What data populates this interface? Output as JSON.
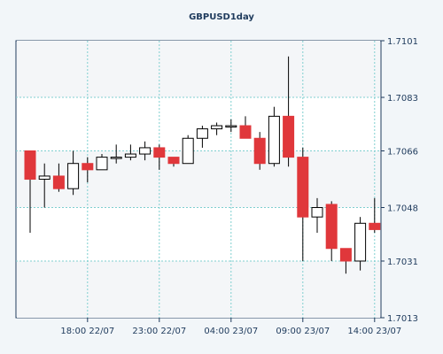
{
  "chart_data": {
    "type": "candlestick",
    "title": "GBPUSD1day",
    "y_ticks": [
      "1.7101",
      "1.7083",
      "1.7066",
      "1.7048",
      "1.7031",
      "1.7013"
    ],
    "ylim": [
      1.7013,
      1.7101
    ],
    "x_ticks": [
      {
        "label": "18:00 22/07",
        "index": 4
      },
      {
        "label": "23:00 22/07",
        "index": 9
      },
      {
        "label": "04:00 23/07",
        "index": 14
      },
      {
        "label": "09:00 23/07",
        "index": 19
      },
      {
        "label": "14:00 23/07",
        "index": 24
      }
    ],
    "grid": true,
    "colors": {
      "bull_body": "#ffffff",
      "bear_body": "#e0373b",
      "wick": "#000000",
      "grid": "#7fcfcf",
      "plot_bg": "#ffffff",
      "page_bg": "#f2f6f9",
      "axis": "#1e3a5c"
    },
    "candles": [
      {
        "open": 1.7066,
        "high": 1.7066,
        "low": 1.704,
        "close": 1.7057
      },
      {
        "open": 1.7057,
        "high": 1.7062,
        "low": 1.7048,
        "close": 1.7058
      },
      {
        "open": 1.7058,
        "high": 1.7062,
        "low": 1.7053,
        "close": 1.7054
      },
      {
        "open": 1.7054,
        "high": 1.7066,
        "low": 1.7052,
        "close": 1.7062
      },
      {
        "open": 1.7062,
        "high": 1.7064,
        "low": 1.7056,
        "close": 1.706
      },
      {
        "open": 1.706,
        "high": 1.7065,
        "low": 1.706,
        "close": 1.7064
      },
      {
        "open": 1.7064,
        "high": 1.7068,
        "low": 1.7062,
        "close": 1.7064
      },
      {
        "open": 1.7064,
        "high": 1.7068,
        "low": 1.7063,
        "close": 1.7065
      },
      {
        "open": 1.7065,
        "high": 1.7069,
        "low": 1.7063,
        "close": 1.7067
      },
      {
        "open": 1.7067,
        "high": 1.7068,
        "low": 1.706,
        "close": 1.7064
      },
      {
        "open": 1.7064,
        "high": 1.7064,
        "low": 1.7061,
        "close": 1.7062
      },
      {
        "open": 1.7062,
        "high": 1.7071,
        "low": 1.7062,
        "close": 1.707
      },
      {
        "open": 1.707,
        "high": 1.7074,
        "low": 1.7067,
        "close": 1.7073
      },
      {
        "open": 1.7073,
        "high": 1.7075,
        "low": 1.7071,
        "close": 1.7074
      },
      {
        "open": 1.7074,
        "high": 1.7076,
        "low": 1.7072,
        "close": 1.7074
      },
      {
        "open": 1.7074,
        "high": 1.7077,
        "low": 1.707,
        "close": 1.707
      },
      {
        "open": 1.707,
        "high": 1.7072,
        "low": 1.706,
        "close": 1.7062
      },
      {
        "open": 1.7062,
        "high": 1.708,
        "low": 1.7061,
        "close": 1.7077
      },
      {
        "open": 1.7077,
        "high": 1.7096,
        "low": 1.7061,
        "close": 1.7064
      },
      {
        "open": 1.7064,
        "high": 1.7067,
        "low": 1.7031,
        "close": 1.7045
      },
      {
        "open": 1.7045,
        "high": 1.7051,
        "low": 1.704,
        "close": 1.7048
      },
      {
        "open": 1.7049,
        "high": 1.705,
        "low": 1.7031,
        "close": 1.7035
      },
      {
        "open": 1.7035,
        "high": 1.7035,
        "low": 1.7027,
        "close": 1.7031
      },
      {
        "open": 1.7031,
        "high": 1.7045,
        "low": 1.7028,
        "close": 1.7043
      },
      {
        "open": 1.7043,
        "high": 1.7051,
        "low": 1.704,
        "close": 1.7041
      }
    ]
  }
}
